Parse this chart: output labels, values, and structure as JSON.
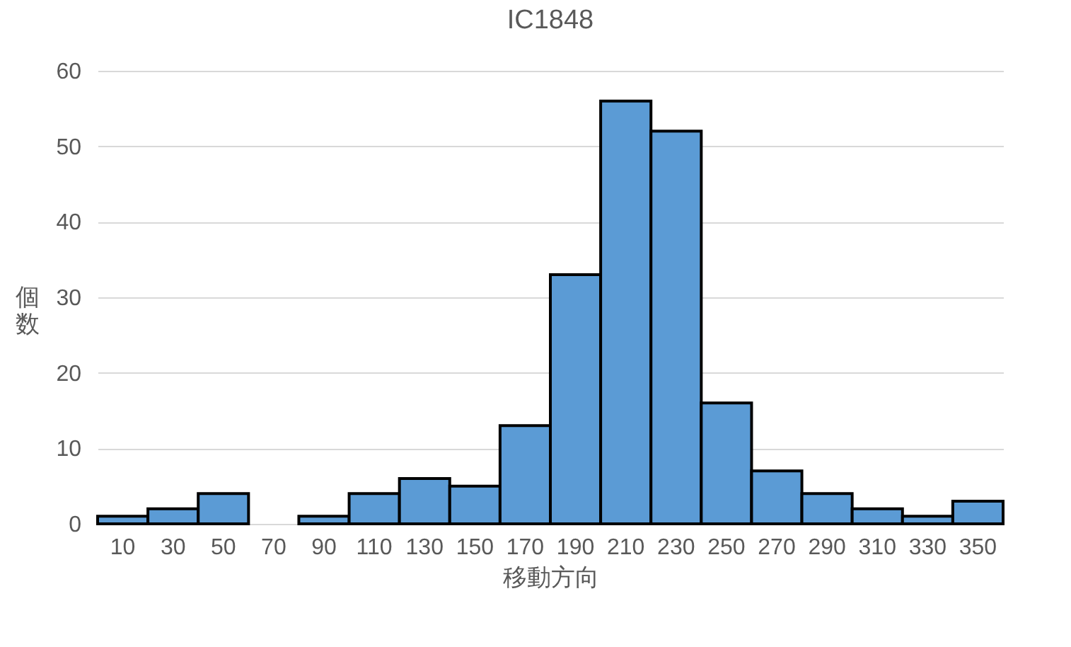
{
  "chart_data": {
    "type": "bar",
    "title": "IC1848",
    "xlabel": "移動方向",
    "ylabel": "個数",
    "categories": [
      "10",
      "30",
      "50",
      "70",
      "90",
      "110",
      "130",
      "150",
      "170",
      "190",
      "210",
      "230",
      "250",
      "270",
      "290",
      "310",
      "330",
      "350"
    ],
    "values": [
      1,
      2,
      4,
      0,
      1,
      4,
      6,
      5,
      13,
      33,
      56,
      52,
      16,
      7,
      4,
      2,
      1,
      3
    ],
    "color": "#5b9bd5",
    "ylim": [
      0,
      60
    ],
    "yticks": [
      0,
      10,
      20,
      30,
      40,
      50,
      60
    ],
    "grid": "y"
  }
}
